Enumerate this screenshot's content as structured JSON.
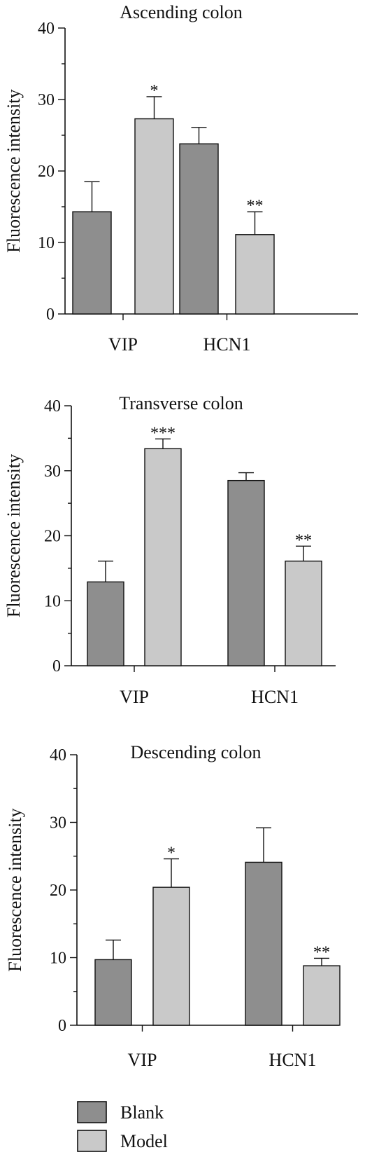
{
  "colors": {
    "blank": "#8e8e8e",
    "model": "#c9c9c9",
    "axis": "#111111"
  },
  "legend": {
    "position": "bottom-left",
    "items": [
      {
        "label": "Blank",
        "color": "#8e8e8e"
      },
      {
        "label": "Model",
        "color": "#c9c9c9"
      }
    ]
  },
  "chart_data": [
    {
      "type": "bar",
      "title": "Ascending colon",
      "ylabel": "Fluorescence intensity",
      "xlabel": "",
      "ylim": [
        0,
        40
      ],
      "yticks": [
        0,
        10,
        20,
        30,
        40
      ],
      "grid": false,
      "categories": [
        "VIP",
        "HCN1"
      ],
      "series": [
        {
          "name": "Blank",
          "values": [
            14.3,
            23.8
          ],
          "errors": [
            4.2,
            2.3
          ]
        },
        {
          "name": "Model",
          "values": [
            27.3,
            11.1
          ],
          "errors": [
            3.1,
            3.2
          ]
        }
      ],
      "annotations": [
        {
          "category": "VIP",
          "series": "Model",
          "text": "*"
        },
        {
          "category": "HCN1",
          "series": "Model",
          "text": "**"
        }
      ]
    },
    {
      "type": "bar",
      "title": "Transverse colon",
      "ylabel": "Fluorescence intensity",
      "xlabel": "",
      "ylim": [
        0,
        40
      ],
      "yticks": [
        0,
        10,
        20,
        30,
        40
      ],
      "grid": false,
      "categories": [
        "VIP",
        "HCN1"
      ],
      "series": [
        {
          "name": "Blank",
          "values": [
            12.9,
            28.5
          ],
          "errors": [
            3.2,
            1.2
          ]
        },
        {
          "name": "Model",
          "values": [
            33.4,
            16.1
          ],
          "errors": [
            1.5,
            2.3
          ]
        }
      ],
      "annotations": [
        {
          "category": "VIP",
          "series": "Model",
          "text": "***"
        },
        {
          "category": "HCN1",
          "series": "Model",
          "text": "**"
        }
      ]
    },
    {
      "type": "bar",
      "title": "Descending colon",
      "ylabel": "Fluorescence intensity",
      "xlabel": "",
      "ylim": [
        0,
        40
      ],
      "yticks": [
        0,
        10,
        20,
        30,
        40
      ],
      "grid": false,
      "categories": [
        "VIP",
        "HCN1"
      ],
      "series": [
        {
          "name": "Blank",
          "values": [
            9.7,
            24.1
          ],
          "errors": [
            2.9,
            5.1
          ]
        },
        {
          "name": "Model",
          "values": [
            20.4,
            8.8
          ],
          "errors": [
            4.2,
            1.1
          ]
        }
      ],
      "annotations": [
        {
          "category": "VIP",
          "series": "Model",
          "text": "*"
        },
        {
          "category": "HCN1",
          "series": "Model",
          "text": "**"
        }
      ]
    }
  ]
}
